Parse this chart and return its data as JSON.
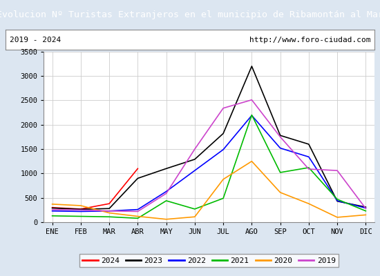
{
  "title": "Evolucion Nº Turistas Extranjeros en el municipio de Ribamontán al Mar",
  "subtitle_left": "2019 - 2024",
  "subtitle_right": "http://www.foro-ciudad.com",
  "months": [
    "ENE",
    "FEB",
    "MAR",
    "ABR",
    "MAY",
    "JUN",
    "JUL",
    "AGO",
    "SEP",
    "OCT",
    "NOV",
    "DIC"
  ],
  "ylim": [
    0,
    3500
  ],
  "yticks": [
    0,
    500,
    1000,
    1500,
    2000,
    2500,
    3000,
    3500
  ],
  "series": {
    "2024": {
      "color": "#ff0000",
      "data": [
        300,
        270,
        380,
        1100,
        null,
        null,
        null,
        null,
        null,
        null,
        null,
        null
      ]
    },
    "2023": {
      "color": "#000000",
      "data": [
        290,
        265,
        280,
        900,
        1100,
        1290,
        1820,
        3200,
        1780,
        1600,
        430,
        310
      ]
    },
    "2022": {
      "color": "#0000ff",
      "data": [
        230,
        220,
        230,
        260,
        630,
        1060,
        1490,
        2190,
        1520,
        1340,
        440,
        290
      ]
    },
    "2021": {
      "color": "#00bb00",
      "data": [
        130,
        120,
        110,
        80,
        440,
        270,
        490,
        2200,
        1020,
        1120,
        470,
        230
      ]
    },
    "2020": {
      "color": "#ff9900",
      "data": [
        370,
        340,
        190,
        120,
        60,
        110,
        880,
        1250,
        610,
        380,
        100,
        150
      ]
    },
    "2019": {
      "color": "#cc44cc",
      "data": [
        260,
        250,
        230,
        220,
        590,
        1500,
        2340,
        2510,
        1750,
        1090,
        1060,
        280
      ]
    }
  },
  "title_bg_color": "#4472c4",
  "title_font_color": "#ffffff",
  "plot_bg_color": "#ffffff",
  "outer_bg_color": "#dce6f1",
  "grid_color": "#cccccc",
  "legend_order": [
    "2024",
    "2023",
    "2022",
    "2021",
    "2020",
    "2019"
  ]
}
